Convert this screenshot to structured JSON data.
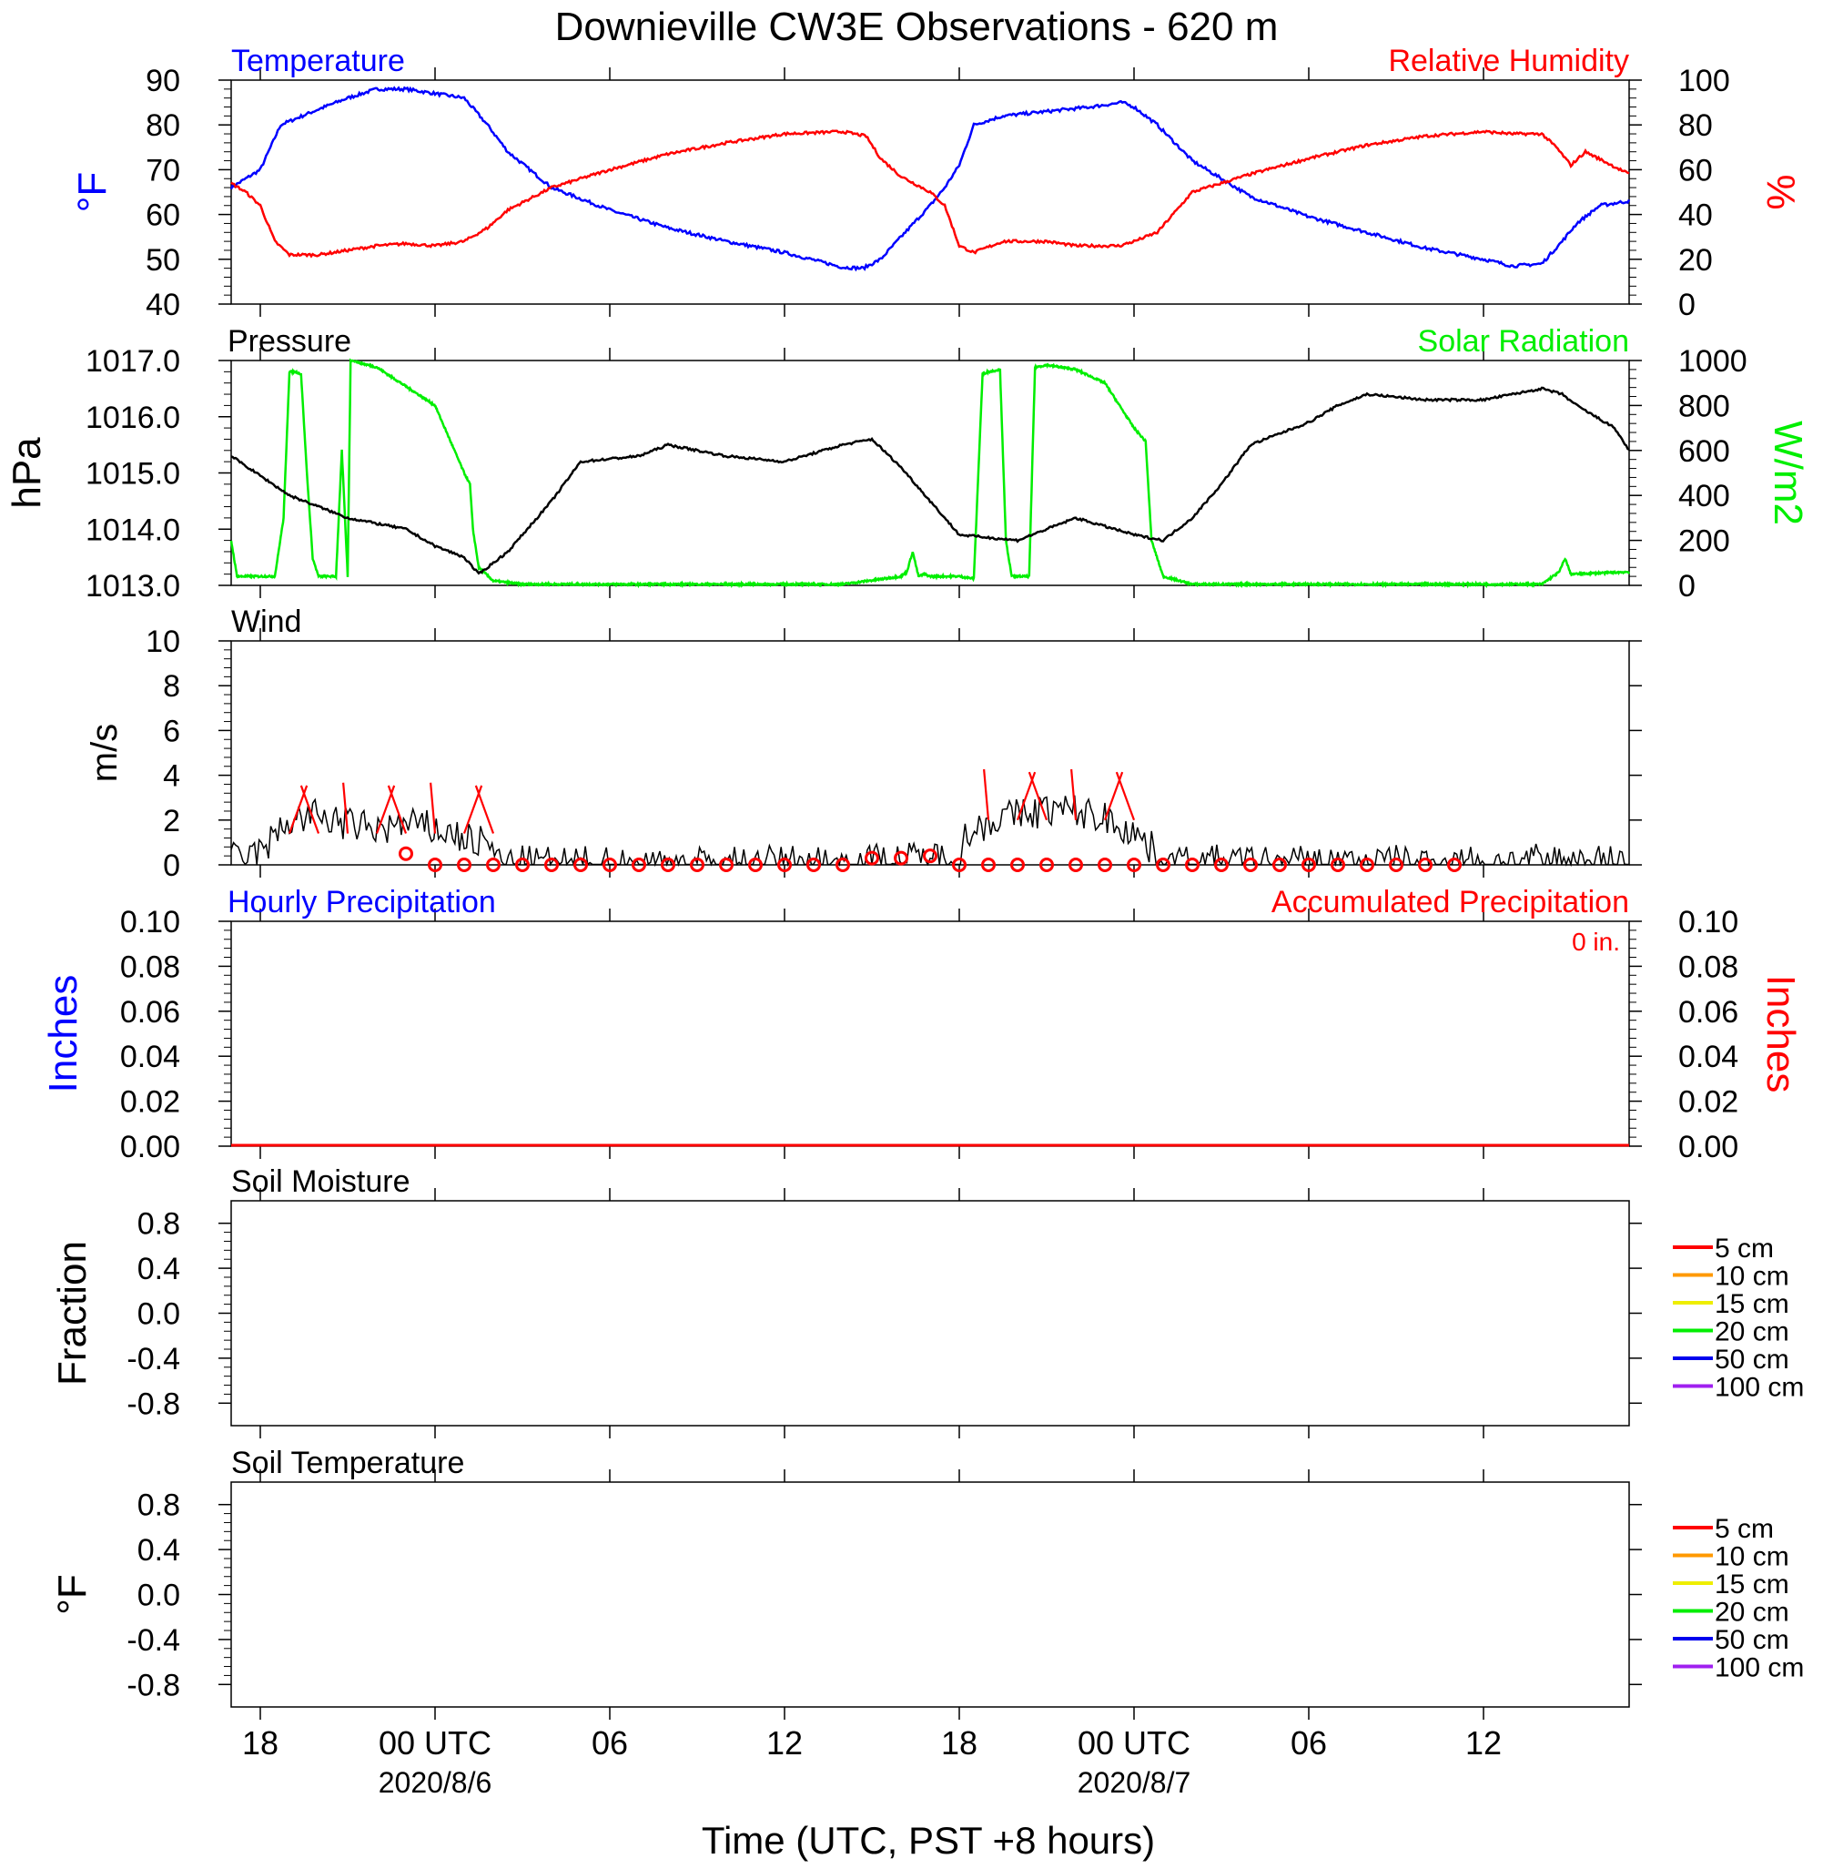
{
  "title": "Downieville CW3E Observations - 620 m",
  "xlabel": "Time (UTC, PST +8 hours)",
  "x_ticks": [
    {
      "label": "18",
      "date": "",
      "hour": -6
    },
    {
      "label": "00 UTC",
      "date": "2020/8/6",
      "hour": 0
    },
    {
      "label": "06",
      "date": "",
      "hour": 6
    },
    {
      "label": "12",
      "date": "",
      "hour": 12
    },
    {
      "label": "18",
      "date": "",
      "hour": 18
    },
    {
      "label": "00 UTC",
      "date": "2020/8/7",
      "hour": 24
    },
    {
      "label": "06",
      "date": "",
      "hour": 30
    },
    {
      "label": "12",
      "date": "",
      "hour": 36
    }
  ],
  "colors": {
    "temperature": "#0000ff",
    "humidity": "#ff0000",
    "pressure": "#000000",
    "solar": "#00ee00",
    "wind": "#000000",
    "wind_marker": "#ff0000",
    "hourly_precip": "#0000ff",
    "accum_precip": "#ff0000"
  },
  "legend_depths": [
    {
      "label": "5 cm",
      "color": "#ff0000"
    },
    {
      "label": "10 cm",
      "color": "#ff9900"
    },
    {
      "label": "15 cm",
      "color": "#eeee00"
    },
    {
      "label": "20 cm",
      "color": "#00ee00"
    },
    {
      "label": "50 cm",
      "color": "#0000ee"
    },
    {
      "label": "100 cm",
      "color": "#a020f0"
    }
  ],
  "chart_data": [
    {
      "type": "line",
      "id": "temp_rh",
      "title_left": "Temperature",
      "title_right": "Relative Humidity",
      "ylabel_left": "°F",
      "ylabel_right": "%",
      "ylim_left": [
        40,
        90
      ],
      "ylim_right": [
        0,
        100
      ],
      "yticks_left": [
        40,
        50,
        60,
        70,
        80,
        90
      ],
      "yticks_right": [
        0,
        20,
        40,
        60,
        80,
        100
      ],
      "x_range_hours": [
        -7,
        41
      ],
      "series": [
        {
          "name": "Temperature",
          "axis": "left",
          "x": [
            -7,
            -6,
            -5.3,
            -4,
            -3,
            -2,
            -1,
            0,
            1,
            1.8,
            2.5,
            4,
            6,
            8,
            10,
            12,
            14,
            14.7,
            15.3,
            16,
            17,
            17.5,
            18,
            18.5,
            19.5,
            21,
            22.5,
            23.6,
            24,
            24.8,
            26,
            28,
            30,
            32,
            34,
            36,
            37,
            38,
            38.7,
            39.2,
            40,
            41
          ],
          "values": [
            66,
            70,
            80,
            83.5,
            86,
            88,
            88,
            87,
            86,
            80,
            74,
            66,
            61,
            57,
            54,
            51.5,
            48.2,
            48,
            50,
            55,
            62,
            66,
            71,
            80,
            82,
            83,
            84,
            85,
            84,
            80,
            72,
            64,
            59.5,
            56,
            52.5,
            50,
            48.5,
            49,
            54,
            58,
            62,
            63
          ]
        },
        {
          "name": "Relative Humidity",
          "axis": "right",
          "x": [
            -7,
            -6.5,
            -6,
            -5.5,
            -5,
            -4,
            -3,
            -2,
            -1,
            0,
            1,
            1.8,
            2.5,
            4,
            6,
            8,
            10,
            12,
            14,
            14.8,
            15.3,
            16,
            17,
            17.5,
            18,
            18.5,
            19.5,
            21,
            22,
            23.5,
            24,
            24.8,
            26,
            28,
            30,
            32,
            34,
            36,
            37,
            38,
            38.5,
            39,
            39.5,
            41
          ],
          "values": [
            54,
            50,
            44,
            28,
            22,
            22,
            24,
            26,
            27,
            26,
            28,
            34,
            42,
            52,
            60,
            67,
            72,
            76,
            77,
            75,
            65,
            57,
            50,
            44,
            26,
            23,
            28,
            28,
            26,
            26,
            28,
            32,
            50,
            58,
            65,
            71,
            75,
            77,
            76,
            76,
            70,
            62,
            68,
            58
          ]
        }
      ]
    },
    {
      "type": "line",
      "id": "pressure_solar",
      "title_left": "Pressure",
      "title_right": "Solar Radiation",
      "ylabel_left": "hPa",
      "ylabel_right": "W/m2",
      "ylim_left": [
        1013.0,
        1017.0
      ],
      "ylim_right": [
        0,
        1000
      ],
      "yticks_left": [
        "1013.0",
        "1014.0",
        "1015.0",
        "1016.0",
        "1017.0"
      ],
      "yticks_right": [
        0,
        200,
        400,
        600,
        800,
        1000
      ],
      "series": [
        {
          "name": "Pressure",
          "axis": "left",
          "x": [
            -7,
            -5,
            -3,
            -1,
            0,
            1,
            1.5,
            2.5,
            4,
            5,
            7,
            8,
            10,
            12,
            14,
            15,
            16,
            17,
            18,
            20,
            22,
            24,
            25,
            26,
            27,
            28,
            30,
            31,
            32,
            34,
            36,
            37,
            38,
            38.7,
            39.2,
            40.5,
            41
          ],
          "values": [
            1015.3,
            1014.6,
            1014.2,
            1014.0,
            1013.7,
            1013.5,
            1013.2,
            1013.6,
            1014.5,
            1015.2,
            1015.3,
            1015.5,
            1015.3,
            1015.2,
            1015.5,
            1015.6,
            1015.1,
            1014.5,
            1013.9,
            1013.8,
            1014.2,
            1013.9,
            1013.8,
            1014.2,
            1014.8,
            1015.5,
            1015.9,
            1016.2,
            1016.4,
            1016.3,
            1016.3,
            1016.4,
            1016.5,
            1016.4,
            1016.2,
            1015.8,
            1015.4
          ]
        },
        {
          "name": "Solar Radiation",
          "axis": "right",
          "x": [
            -7,
            -6.8,
            -6.5,
            -6,
            -5.5,
            -5.2,
            -5.0,
            -4.8,
            -4.6,
            -4.4,
            -4.2,
            -4.0,
            -3.4,
            -3.2,
            -3.0,
            -2.9,
            -2.8,
            -2.6,
            -2,
            0,
            1,
            1.2,
            1.3,
            1.5,
            2,
            3,
            14,
            16,
            16.2,
            16.4,
            16.6,
            16.8,
            17,
            17.5,
            18,
            18.5,
            18.8,
            19,
            19.4,
            19.6,
            19.8,
            20,
            20.4,
            20.6,
            21,
            22,
            23,
            24,
            24.4,
            24.6,
            24.8,
            25,
            26,
            38,
            38.6,
            38.8,
            39,
            41
          ],
          "values": [
            200,
            40,
            40,
            40,
            40,
            300,
            950,
            950,
            940,
            500,
            120,
            40,
            40,
            600,
            40,
            1000,
            1000,
            990,
            970,
            800,
            500,
            450,
            250,
            80,
            20,
            5,
            5,
            40,
            60,
            150,
            40,
            50,
            40,
            40,
            40,
            30,
            940,
            950,
            960,
            200,
            40,
            40,
            40,
            970,
            980,
            960,
            900,
            700,
            640,
            200,
            120,
            40,
            5,
            5,
            60,
            120,
            50,
            60
          ]
        }
      ]
    },
    {
      "type": "line",
      "id": "wind",
      "title_left": "Wind",
      "ylabel_left": "m/s",
      "ylim_left": [
        0,
        10
      ],
      "yticks_left": [
        0,
        2,
        4,
        6,
        8,
        10
      ],
      "series": [
        {
          "name": "Wind",
          "axis": "left",
          "x": [
            -7,
            -6,
            -5,
            -4,
            -3,
            -2,
            -1,
            0,
            1,
            1.5,
            2,
            2.2,
            4,
            10,
            16,
            17,
            18,
            18.2,
            19,
            20,
            21,
            22,
            23,
            24,
            24.5,
            25.2,
            25.4,
            30,
            36,
            41
          ],
          "values": [
            0.2,
            0.5,
            2.0,
            2.2,
            1.8,
            1.6,
            1.8,
            1.6,
            1.2,
            1.0,
            0.8,
            0.1,
            0.05,
            0.05,
            0.2,
            0.3,
            0.3,
            1.2,
            2.0,
            2.2,
            2.5,
            2.4,
            2.1,
            1.5,
            0.8,
            0.2,
            0.1,
            0.1,
            0.1,
            0.2
          ]
        }
      ],
      "barb_speeds": [
        0.5,
        0.0,
        0.0,
        0.0,
        0.0,
        0.0,
        0.0,
        0.0,
        0.0,
        0.0,
        0.0,
        0.0,
        0.0,
        0.0,
        0.0,
        0.0,
        0.3,
        0.3,
        0.4,
        0.0,
        0.0,
        0.0,
        0.0,
        0.0,
        0.0,
        0.0,
        0.0,
        0.0,
        0.0,
        0.0,
        0.0,
        0.0,
        0.0,
        0.0,
        0.0,
        0.0,
        0.0
      ]
    },
    {
      "type": "line",
      "id": "precip",
      "title_left": "Hourly Precipitation",
      "title_right": "Accumulated Precipitation",
      "annotation": "0 in.",
      "ylabel_left": "Inches",
      "ylabel_right": "Inches",
      "ylim_left": [
        0,
        0.1
      ],
      "ylim_right": [
        0,
        0.1
      ],
      "yticks_left": [
        "0.00",
        "0.02",
        "0.04",
        "0.06",
        "0.08",
        "0.10"
      ],
      "yticks_right": [
        "0.00",
        "0.02",
        "0.04",
        "0.06",
        "0.08",
        "0.10"
      ],
      "series": [
        {
          "name": "Hourly Precipitation",
          "axis": "left",
          "x": [
            -7,
            41
          ],
          "values": [
            0,
            0
          ]
        },
        {
          "name": "Accumulated Precipitation",
          "axis": "right",
          "x": [
            -7,
            41
          ],
          "values": [
            0,
            0
          ]
        }
      ]
    },
    {
      "type": "line",
      "id": "soil_moisture",
      "title_left": "Soil Moisture",
      "ylabel_left": "Fraction",
      "ylim_left": [
        -1,
        1
      ],
      "yticks_left": [
        "-0.8",
        "-0.4",
        "0.0",
        "0.4",
        "0.8"
      ],
      "series": []
    },
    {
      "type": "line",
      "id": "soil_temperature",
      "title_left": "Soil Temperature",
      "ylabel_left": "°F",
      "ylim_left": [
        -1,
        1
      ],
      "yticks_left": [
        "-0.8",
        "-0.4",
        "0.0",
        "0.4",
        "0.8"
      ],
      "series": []
    }
  ]
}
